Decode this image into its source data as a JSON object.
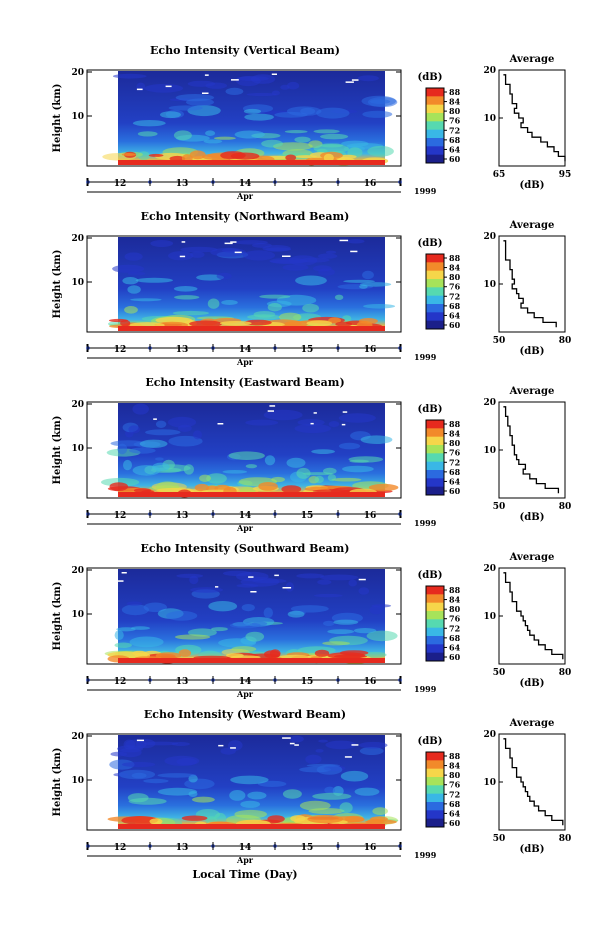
{
  "figure": {
    "x_label": "Local Time (Day)",
    "month_label": "Apr",
    "year_label": "1999",
    "cbar_unit": "(dB)",
    "avg_title": "Average",
    "avg_xlabel": "(dB)"
  },
  "chart_data": [
    {
      "type": "heatmap",
      "title": "Echo Intensity (Vertical Beam)",
      "ylabel": "Height (km)",
      "yticks": [
        "20",
        "10"
      ],
      "xticks": [
        "12",
        "13",
        "14",
        "15",
        "16"
      ],
      "colorbar_ticks": [
        "88",
        "84",
        "80",
        "76",
        "72",
        "68",
        "64",
        "60"
      ],
      "colormap": [
        "#1b1f8a",
        "#2436c8",
        "#2b6ae0",
        "#39b7e6",
        "#56d9b0",
        "#a7e35a",
        "#f6d64a",
        "#f28a2a",
        "#e62a1e"
      ],
      "average_profile": {
        "xticks": [
          "65",
          "95"
        ],
        "xlim": [
          65,
          95
        ],
        "ylim": [
          0,
          20
        ],
        "points": [
          [
            67,
            19
          ],
          [
            68,
            17
          ],
          [
            70,
            15
          ],
          [
            71,
            13
          ],
          [
            73,
            12
          ],
          [
            72,
            11
          ],
          [
            74,
            10
          ],
          [
            76,
            9
          ],
          [
            75,
            8
          ],
          [
            78,
            7
          ],
          [
            80,
            6
          ],
          [
            84,
            5
          ],
          [
            87,
            4
          ],
          [
            90,
            3
          ],
          [
            92,
            2
          ],
          [
            95,
            1
          ]
        ]
      }
    },
    {
      "type": "heatmap",
      "title": "Echo Intensity (Northward Beam)",
      "ylabel": "Height (km)",
      "yticks": [
        "20",
        "10"
      ],
      "xticks": [
        "12",
        "13",
        "14",
        "15",
        "16"
      ],
      "colorbar_ticks": [
        "88",
        "84",
        "80",
        "76",
        "72",
        "68",
        "64",
        "60"
      ],
      "colormap": [
        "#1b1f8a",
        "#2436c8",
        "#2b6ae0",
        "#39b7e6",
        "#56d9b0",
        "#a7e35a",
        "#f6d64a",
        "#f28a2a",
        "#e62a1e"
      ],
      "average_profile": {
        "xticks": [
          "50",
          "80"
        ],
        "xlim": [
          50,
          80
        ],
        "ylim": [
          0,
          20
        ],
        "points": [
          [
            52,
            19
          ],
          [
            53,
            17
          ],
          [
            53,
            15
          ],
          [
            55,
            13
          ],
          [
            56,
            11
          ],
          [
            57,
            10
          ],
          [
            56,
            9
          ],
          [
            58,
            8
          ],
          [
            59,
            7
          ],
          [
            61,
            6
          ],
          [
            60,
            5
          ],
          [
            63,
            4
          ],
          [
            66,
            3
          ],
          [
            70,
            2
          ],
          [
            76,
            1
          ]
        ]
      }
    },
    {
      "type": "heatmap",
      "title": "Echo Intensity (Eastward Beam)",
      "ylabel": "Height (km)",
      "yticks": [
        "20",
        "10"
      ],
      "xticks": [
        "12",
        "13",
        "14",
        "15",
        "16"
      ],
      "colorbar_ticks": [
        "88",
        "84",
        "80",
        "76",
        "72",
        "68",
        "64",
        "60"
      ],
      "colormap": [
        "#1b1f8a",
        "#2436c8",
        "#2b6ae0",
        "#39b7e6",
        "#56d9b0",
        "#a7e35a",
        "#f6d64a",
        "#f28a2a",
        "#e62a1e"
      ],
      "average_profile": {
        "xticks": [
          "50",
          "80"
        ],
        "xlim": [
          50,
          80
        ],
        "ylim": [
          0,
          20
        ],
        "points": [
          [
            52,
            19
          ],
          [
            53,
            17
          ],
          [
            54,
            15
          ],
          [
            55,
            13
          ],
          [
            56,
            11
          ],
          [
            57,
            10
          ],
          [
            57,
            9
          ],
          [
            58,
            8
          ],
          [
            59,
            7
          ],
          [
            62,
            6
          ],
          [
            61,
            5
          ],
          [
            64,
            4
          ],
          [
            67,
            3
          ],
          [
            71,
            2
          ],
          [
            77,
            1
          ]
        ]
      }
    },
    {
      "type": "heatmap",
      "title": "Echo Intensity (Southward Beam)",
      "ylabel": "Height (km)",
      "yticks": [
        "20",
        "10"
      ],
      "xticks": [
        "12",
        "13",
        "14",
        "15",
        "16"
      ],
      "colorbar_ticks": [
        "88",
        "84",
        "80",
        "76",
        "72",
        "68",
        "64",
        "60"
      ],
      "colormap": [
        "#1b1f8a",
        "#2436c8",
        "#2b6ae0",
        "#39b7e6",
        "#56d9b0",
        "#a7e35a",
        "#f6d64a",
        "#f28a2a",
        "#e62a1e"
      ],
      "average_profile": {
        "xticks": [
          "50",
          "80"
        ],
        "xlim": [
          50,
          80
        ],
        "ylim": [
          0,
          20
        ],
        "points": [
          [
            52,
            19
          ],
          [
            53,
            17
          ],
          [
            55,
            15
          ],
          [
            56,
            13
          ],
          [
            58,
            12
          ],
          [
            58,
            11
          ],
          [
            60,
            10
          ],
          [
            61,
            9
          ],
          [
            62,
            8
          ],
          [
            63,
            7
          ],
          [
            64,
            6
          ],
          [
            66,
            5
          ],
          [
            68,
            4
          ],
          [
            71,
            3
          ],
          [
            74,
            2
          ],
          [
            79,
            1
          ]
        ]
      }
    },
    {
      "type": "heatmap",
      "title": "Echo Intensity (Westward Beam)",
      "ylabel": "Height (km)",
      "yticks": [
        "20",
        "10"
      ],
      "xticks": [
        "12",
        "13",
        "14",
        "15",
        "16"
      ],
      "colorbar_ticks": [
        "88",
        "84",
        "80",
        "76",
        "72",
        "68",
        "64",
        "60"
      ],
      "colormap": [
        "#1b1f8a",
        "#2436c8",
        "#2b6ae0",
        "#39b7e6",
        "#56d9b0",
        "#a7e35a",
        "#f6d64a",
        "#f28a2a",
        "#e62a1e"
      ],
      "average_profile": {
        "xticks": [
          "50",
          "80"
        ],
        "xlim": [
          50,
          80
        ],
        "ylim": [
          0,
          20
        ],
        "points": [
          [
            52,
            19
          ],
          [
            53,
            17
          ],
          [
            55,
            15
          ],
          [
            56,
            13
          ],
          [
            58,
            12
          ],
          [
            58,
            11
          ],
          [
            60,
            10
          ],
          [
            61,
            9
          ],
          [
            62,
            8
          ],
          [
            63,
            7
          ],
          [
            64,
            6
          ],
          [
            66,
            5
          ],
          [
            68,
            4
          ],
          [
            71,
            3
          ],
          [
            74,
            2
          ],
          [
            79,
            1
          ]
        ]
      }
    }
  ]
}
